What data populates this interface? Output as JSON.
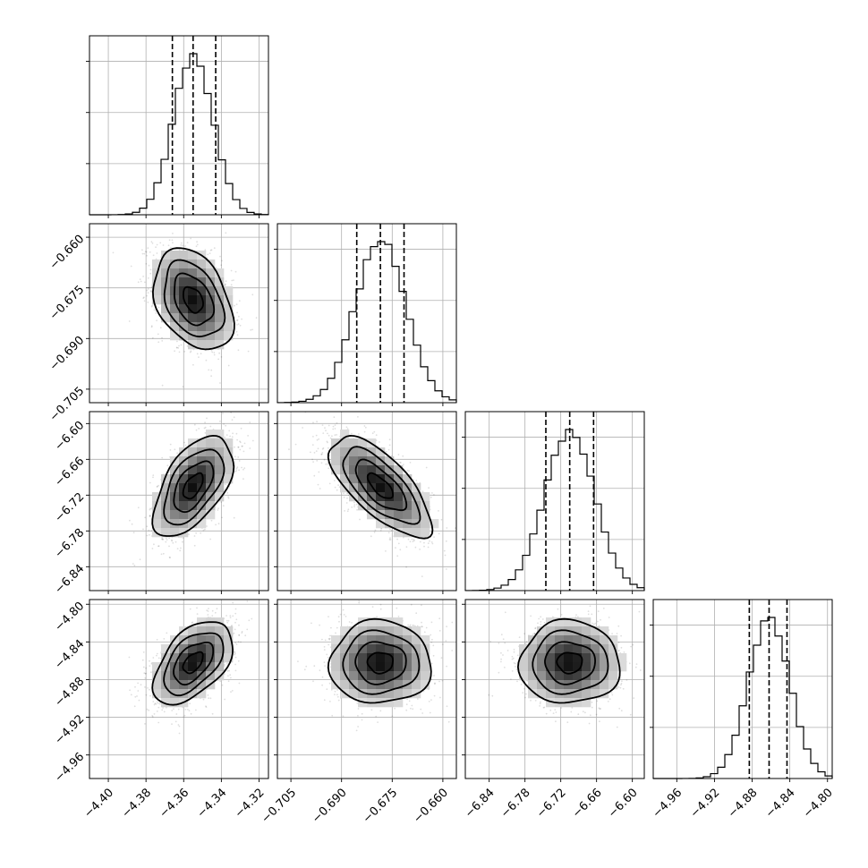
{
  "chart_data": {
    "type": "corner",
    "parameters": [
      {
        "index": 0,
        "mean": -4.355,
        "sd": 0.0105,
        "range": [
          -4.41,
          -4.315
        ],
        "ticks": [
          -4.4,
          -4.38,
          -4.36,
          -4.34,
          -4.32
        ],
        "tick_labels": [
          "−4.40",
          "−4.38",
          "−4.36",
          "−4.34",
          "−4.32"
        ],
        "quantiles": [
          -4.366,
          -4.355,
          -4.343
        ]
      },
      {
        "index": 1,
        "mean": -0.6785,
        "sd": 0.0075,
        "range": [
          -0.709,
          -0.656
        ],
        "ticks": [
          -0.705,
          -0.69,
          -0.675,
          -0.66
        ],
        "tick_labels": [
          "−0.705",
          "−0.690",
          "−0.675",
          "−0.660"
        ],
        "quantiles": [
          -0.6855,
          -0.6785,
          -0.6715
        ]
      },
      {
        "index": 2,
        "mean": -6.705,
        "sd": 0.042,
        "range": [
          -6.88,
          -6.58
        ],
        "ticks": [
          -6.84,
          -6.78,
          -6.72,
          -6.66,
          -6.6
        ],
        "tick_labels": [
          "−6.84",
          "−6.78",
          "−6.72",
          "−6.66",
          "−6.60"
        ],
        "quantiles": [
          -6.745,
          -6.705,
          -6.665
        ]
      },
      {
        "index": 3,
        "mean": -4.862,
        "sd": 0.022,
        "range": [
          -4.985,
          -4.795
        ],
        "ticks": [
          -4.96,
          -4.92,
          -4.88,
          -4.84,
          -4.8
        ],
        "tick_labels": [
          "−4.96",
          "−4.92",
          "−4.88",
          "−4.84",
          "−4.80"
        ],
        "quantiles": [
          -4.883,
          -4.862,
          -4.843
        ]
      }
    ],
    "correlations": [
      {
        "pair": [
          1,
          0
        ],
        "rho": -0.35
      },
      {
        "pair": [
          2,
          0
        ],
        "rho": 0.55
      },
      {
        "pair": [
          2,
          1
        ],
        "rho": -0.7
      },
      {
        "pair": [
          3,
          0
        ],
        "rho": 0.5
      },
      {
        "pair": [
          3,
          1
        ],
        "rho": 0.0
      },
      {
        "pair": [
          3,
          2
        ],
        "rho": 0.0
      }
    ],
    "grid": true,
    "quantile_lines": "dashed",
    "contour_levels": 4
  }
}
